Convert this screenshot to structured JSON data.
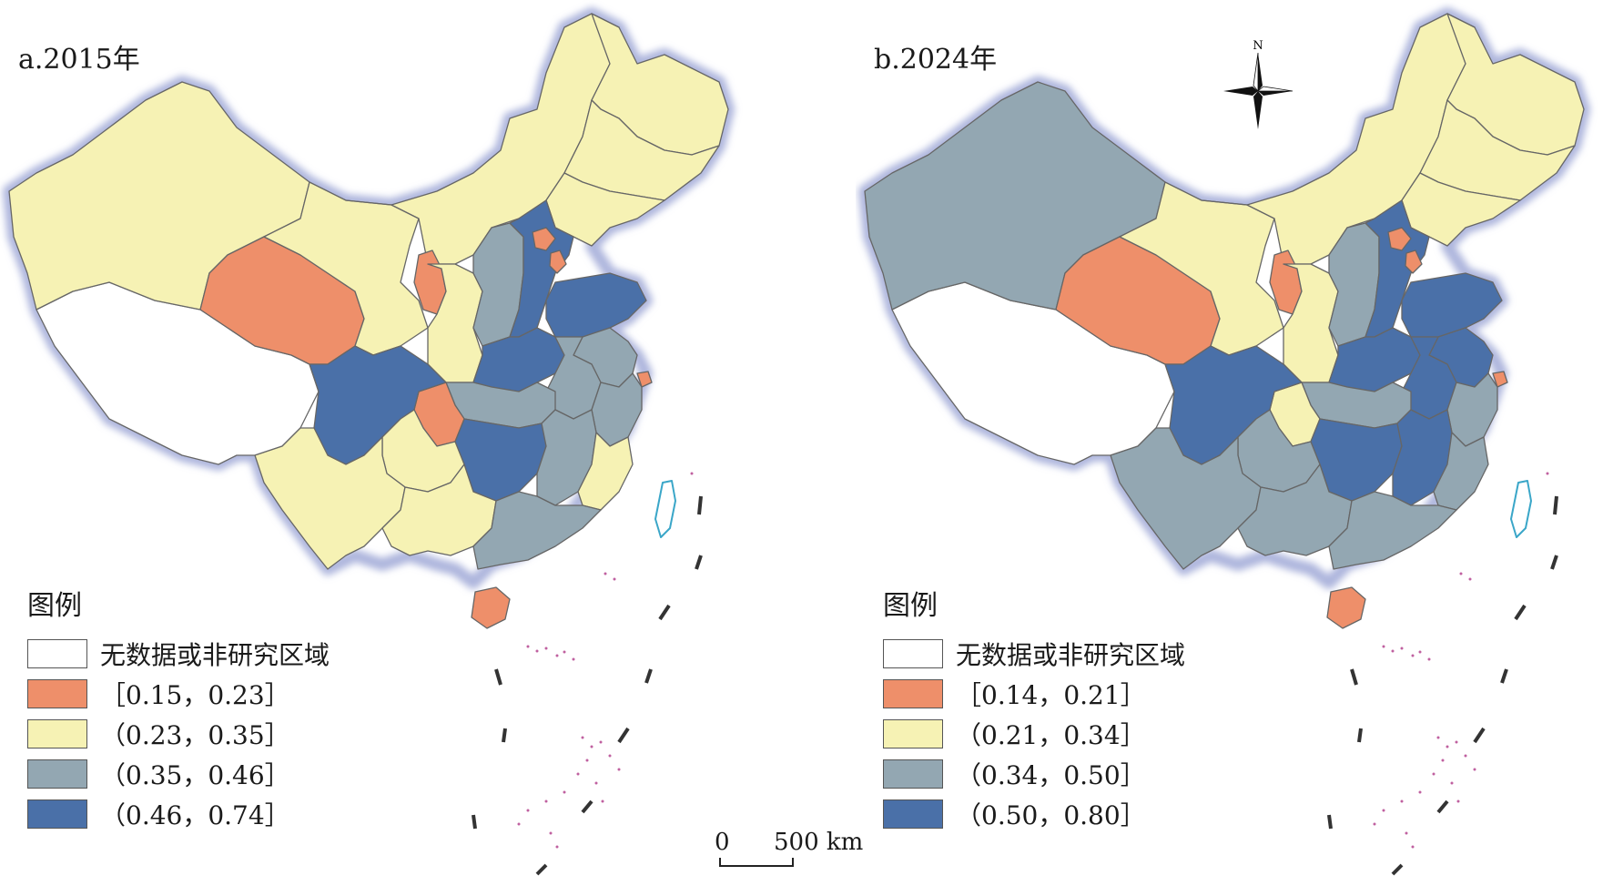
{
  "colors": {
    "no_data": "#ffffff",
    "class1": "#ee8f6a",
    "class2": "#f6f2b4",
    "class3": "#93a7b2",
    "class4": "#4a70a8",
    "border_glow": "#aeb6dd",
    "border": "#666666"
  },
  "panels": [
    {
      "title": "a.2015年",
      "legend": {
        "title": "图例",
        "items": [
          {
            "label": "无数据或非研究区域",
            "color_key": "no_data"
          },
          {
            "label": "［0.15，0.23］",
            "color_key": "class1"
          },
          {
            "label": "（0.23，0.35］",
            "color_key": "class2"
          },
          {
            "label": "（0.35，0.46］",
            "color_key": "class3"
          },
          {
            "label": "（0.46，0.74］",
            "color_key": "class4"
          }
        ]
      },
      "regions": {
        "xizang": "no_data",
        "xinjiang": "class2",
        "innermongolia": "class2",
        "heilongjiang": "class2",
        "jilin": "class2",
        "liaoning": "class2",
        "gansu": "class2",
        "qinghai": "class1",
        "ningxia": "class1",
        "shaanxi": "class2",
        "shanxi": "class3",
        "hebei": "class4",
        "beijing": "class1",
        "tianjin": "class1",
        "shandong": "class4",
        "henan": "class4",
        "jiangsu": "class3",
        "anhui": "class3",
        "shanghai": "class1",
        "zhejiang": "class3",
        "hubei": "class3",
        "chongqing": "class1",
        "sichuan": "class4",
        "hunan": "class4",
        "jiangxi": "class3",
        "fujian": "class2",
        "guizhou": "class2",
        "yunnan": "class2",
        "guangxi": "class2",
        "guangdong": "class3",
        "hainan": "class1",
        "taiwan": "no_data"
      }
    },
    {
      "title": "b.2024年",
      "legend": {
        "title": "图例",
        "items": [
          {
            "label": "无数据或非研究区域",
            "color_key": "no_data"
          },
          {
            "label": "［0.14，0.21］",
            "color_key": "class1"
          },
          {
            "label": "（0.21，0.34］",
            "color_key": "class2"
          },
          {
            "label": "（0.34，0.50］",
            "color_key": "class3"
          },
          {
            "label": "（0.50，0.80］",
            "color_key": "class4"
          }
        ]
      },
      "regions": {
        "xizang": "no_data",
        "xinjiang": "class3",
        "innermongolia": "class2",
        "heilongjiang": "class2",
        "jilin": "class2",
        "liaoning": "class2",
        "gansu": "class2",
        "qinghai": "class1",
        "ningxia": "class1",
        "shaanxi": "class2",
        "shanxi": "class3",
        "hebei": "class4",
        "beijing": "class1",
        "tianjin": "class1",
        "shandong": "class4",
        "henan": "class4",
        "jiangsu": "class4",
        "anhui": "class4",
        "shanghai": "class1",
        "zhejiang": "class3",
        "hubei": "class3",
        "chongqing": "class2",
        "sichuan": "class4",
        "hunan": "class4",
        "jiangxi": "class4",
        "fujian": "class3",
        "guizhou": "class3",
        "yunnan": "class3",
        "guangxi": "class3",
        "guangdong": "class3",
        "hainan": "class1",
        "taiwan": "no_data"
      }
    }
  ],
  "compass_label": "N",
  "scale_bar": {
    "start": "0",
    "end": "500 km"
  }
}
